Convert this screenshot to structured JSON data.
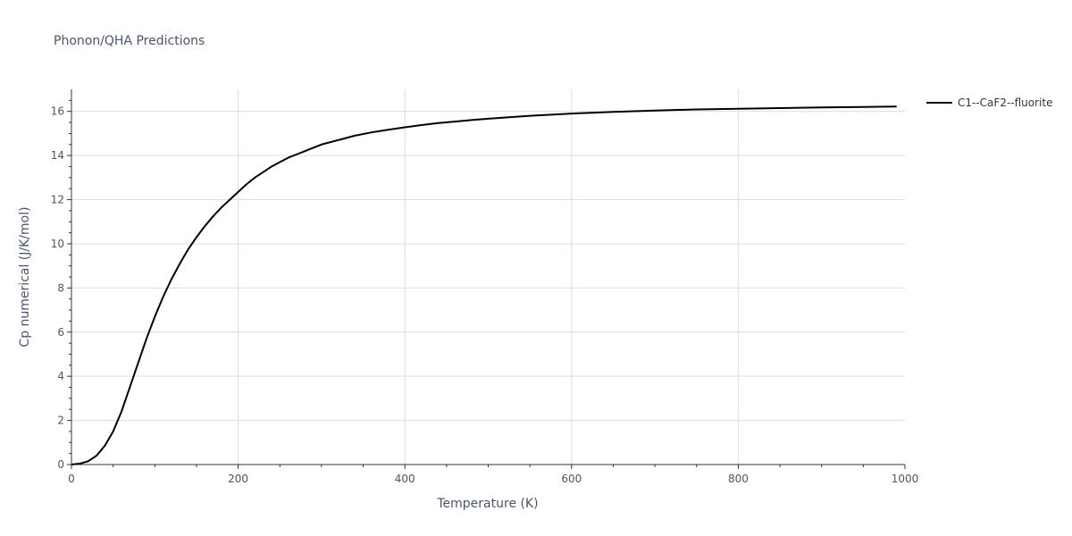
{
  "chart_data": {
    "type": "line",
    "title": "Phonon/QHA Predictions",
    "xlabel": "Temperature (K)",
    "ylabel": "Cp numerical (J/K/mol)",
    "xlim": [
      0,
      1000
    ],
    "ylim": [
      0,
      17
    ],
    "xticks": [
      0,
      200,
      400,
      600,
      800,
      1000
    ],
    "yticks": [
      0,
      2,
      4,
      6,
      8,
      10,
      12,
      14,
      16
    ],
    "grid": true,
    "legend_position": "top-right",
    "series": [
      {
        "name": "C1--CaF2--fluorite",
        "color": "#000000",
        "x": [
          0,
          10,
          20,
          30,
          40,
          50,
          60,
          70,
          80,
          90,
          100,
          110,
          120,
          130,
          140,
          150,
          160,
          170,
          180,
          190,
          200,
          210,
          220,
          230,
          240,
          250,
          260,
          270,
          280,
          290,
          300,
          320,
          340,
          360,
          380,
          400,
          420,
          440,
          460,
          480,
          500,
          550,
          600,
          650,
          700,
          750,
          800,
          850,
          900,
          950,
          990
        ],
        "y": [
          0,
          0.04,
          0.15,
          0.4,
          0.85,
          1.5,
          2.4,
          3.5,
          4.6,
          5.7,
          6.7,
          7.6,
          8.4,
          9.1,
          9.75,
          10.3,
          10.8,
          11.25,
          11.65,
          12.0,
          12.35,
          12.7,
          13.0,
          13.25,
          13.5,
          13.7,
          13.9,
          14.05,
          14.2,
          14.35,
          14.5,
          14.7,
          14.9,
          15.05,
          15.17,
          15.28,
          15.38,
          15.47,
          15.54,
          15.61,
          15.67,
          15.8,
          15.9,
          15.98,
          16.04,
          16.09,
          16.12,
          16.15,
          16.18,
          16.2,
          16.22
        ]
      }
    ]
  }
}
